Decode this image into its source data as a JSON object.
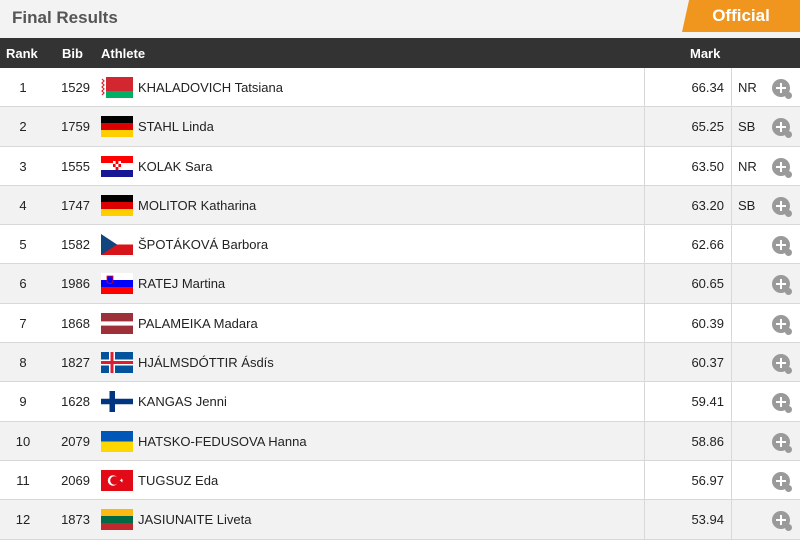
{
  "header": {
    "title": "Final Results",
    "status": "Official"
  },
  "columns": {
    "rank": "Rank",
    "bib": "Bib",
    "athlete": "Athlete",
    "mark": "Mark"
  },
  "results": [
    {
      "rank": "1",
      "bib": "1529",
      "name": "KHALADOVICH Tatsiana",
      "mark": "66.34",
      "note": "NR",
      "flag": "BLR"
    },
    {
      "rank": "2",
      "bib": "1759",
      "name": "STAHL Linda",
      "mark": "65.25",
      "note": "SB",
      "flag": "GER"
    },
    {
      "rank": "3",
      "bib": "1555",
      "name": "KOLAK Sara",
      "mark": "63.50",
      "note": "NR",
      "flag": "CRO"
    },
    {
      "rank": "4",
      "bib": "1747",
      "name": "MOLITOR Katharina",
      "mark": "63.20",
      "note": "SB",
      "flag": "GER"
    },
    {
      "rank": "5",
      "bib": "1582",
      "name": "ŠPOTÁKOVÁ Barbora",
      "mark": "62.66",
      "note": "",
      "flag": "CZE"
    },
    {
      "rank": "6",
      "bib": "1986",
      "name": "RATEJ Martina",
      "mark": "60.65",
      "note": "",
      "flag": "SLO"
    },
    {
      "rank": "7",
      "bib": "1868",
      "name": "PALAMEIKA Madara",
      "mark": "60.39",
      "note": "",
      "flag": "LAT"
    },
    {
      "rank": "8",
      "bib": "1827",
      "name": "HJÁLMSDÓTTIR Ásdís",
      "mark": "60.37",
      "note": "",
      "flag": "ISL"
    },
    {
      "rank": "9",
      "bib": "1628",
      "name": "KANGAS Jenni",
      "mark": "59.41",
      "note": "",
      "flag": "FIN"
    },
    {
      "rank": "10",
      "bib": "2079",
      "name": "HATSKO-FEDUSOVA Hanna",
      "mark": "58.86",
      "note": "",
      "flag": "UKR"
    },
    {
      "rank": "11",
      "bib": "2069",
      "name": "TUGSUZ Eda",
      "mark": "56.97",
      "note": "",
      "flag": "TUR"
    },
    {
      "rank": "12",
      "bib": "1873",
      "name": "JASIUNAITE Liveta",
      "mark": "53.94",
      "note": "",
      "flag": "LTU"
    }
  ]
}
